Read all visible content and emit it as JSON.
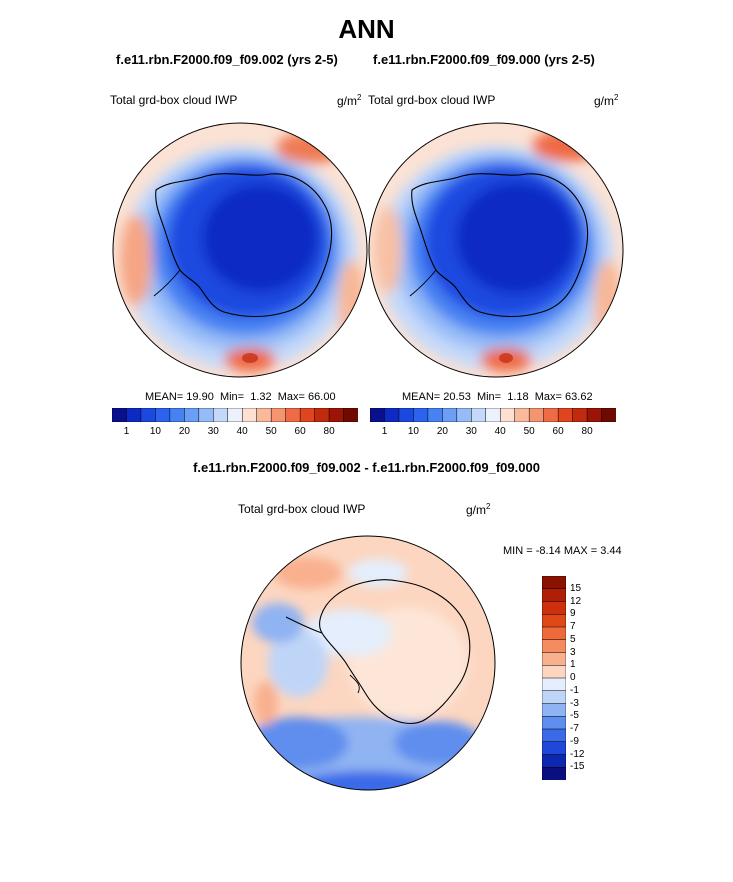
{
  "title": "ANN",
  "chart_data": [
    {
      "type": "heatmap",
      "projection": "south-polar-stereographic",
      "title": "f.e11.rbn.F2000.f09_f09.002 (yrs 2-5)",
      "variable_label": "Total grd-box cloud IWP",
      "units_base": "g/m",
      "units_exp": "2",
      "stats": {
        "mean_label": "MEAN=",
        "mean": "19.90",
        "min_label": "Min=",
        "min": "1.32",
        "max_label": "Max=",
        "max": "66.00"
      },
      "colorbar": {
        "orientation": "horizontal",
        "tick_labels": [
          "1",
          "10",
          "20",
          "30",
          "40",
          "50",
          "60",
          "80"
        ],
        "colors": [
          "#0a0f8c",
          "#0d2bc4",
          "#1b49e0",
          "#2c63ee",
          "#4682f3",
          "#6b9ef5",
          "#96bcf7",
          "#c4d9fa",
          "#ecf2fd",
          "#fde0d2",
          "#f9b99b",
          "#f59470",
          "#ef6b45",
          "#e0451f",
          "#c12a0d",
          "#9c1405",
          "#6e0a00"
        ]
      }
    },
    {
      "type": "heatmap",
      "projection": "south-polar-stereographic",
      "title": "f.e11.rbn.F2000.f09_f09.000 (yrs 2-5)",
      "variable_label": "Total grd-box cloud IWP",
      "units_base": "g/m",
      "units_exp": "2",
      "stats": {
        "mean_label": "MEAN=",
        "mean": "20.53",
        "min_label": "Min=",
        "min": "1.18",
        "max_label": "Max=",
        "max": "63.62"
      },
      "colorbar": {
        "orientation": "horizontal",
        "tick_labels": [
          "1",
          "10",
          "20",
          "30",
          "40",
          "50",
          "60",
          "80"
        ],
        "colors": [
          "#0a0f8c",
          "#0d2bc4",
          "#1b49e0",
          "#2c63ee",
          "#4682f3",
          "#6b9ef5",
          "#96bcf7",
          "#c4d9fa",
          "#ecf2fd",
          "#fde0d2",
          "#f9b99b",
          "#f59470",
          "#ef6b45",
          "#e0451f",
          "#c12a0d",
          "#9c1405",
          "#6e0a00"
        ]
      }
    },
    {
      "type": "heatmap",
      "projection": "south-polar-stereographic",
      "title": "f.e11.rbn.F2000.f09_f09.002 - f.e11.rbn.F2000.f09_f09.000",
      "variable_label": "Total grd-box cloud IWP",
      "units_base": "g/m",
      "units_exp": "2",
      "stats": {
        "min_label": "MIN =",
        "min": "-8.14",
        "max_label": "MAX =",
        "max": "3.44"
      },
      "colorbar": {
        "orientation": "vertical",
        "tick_labels": [
          "15",
          "12",
          "9",
          "7",
          "5",
          "3",
          "1",
          "0",
          "-1",
          "-3",
          "-5",
          "-7",
          "-9",
          "-12",
          "-15"
        ],
        "colors": [
          "#8a1200",
          "#b01e05",
          "#cc300f",
          "#e04818",
          "#ef6a3a",
          "#f58c60",
          "#f9b08e",
          "#fcd6c0",
          "#e4eefc",
          "#bfd5f8",
          "#90b3f2",
          "#5e8eee",
          "#3a6ae8",
          "#1f47d8",
          "#0c28b0",
          "#0a0f80"
        ]
      }
    }
  ]
}
